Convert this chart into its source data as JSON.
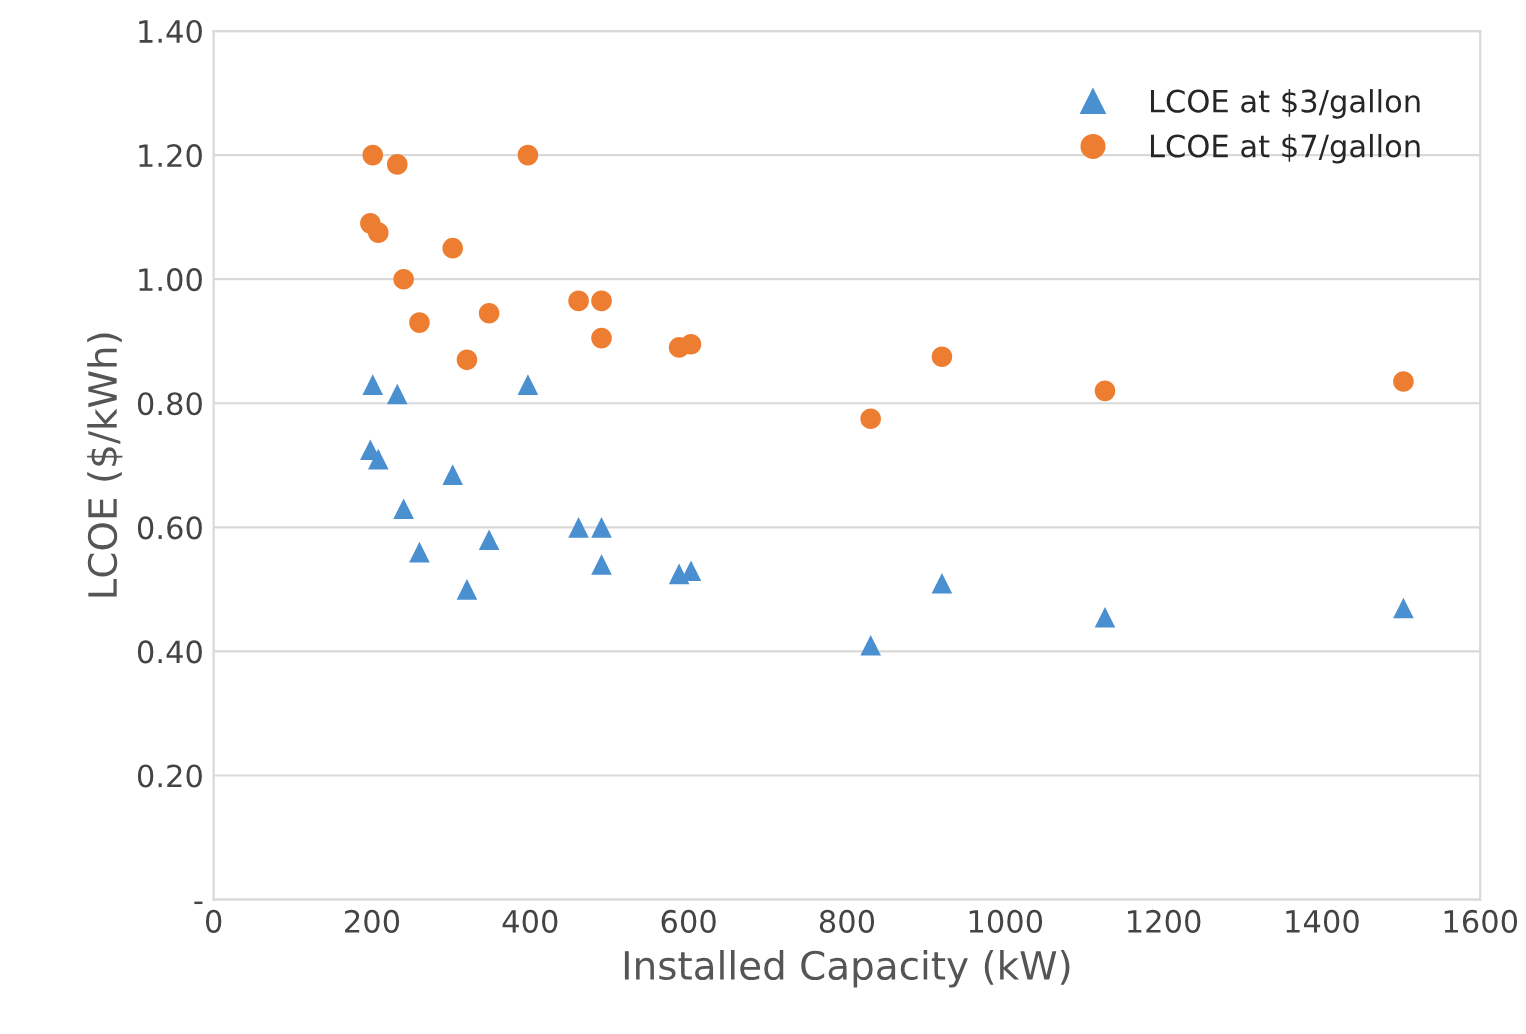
{
  "chart_data": {
    "type": "scatter",
    "xlabel": "Installed Capacity (kW)",
    "ylabel": "LCOE ($/kWh)",
    "xlim": [
      0,
      1600
    ],
    "xticks": [
      0,
      200,
      400,
      600,
      800,
      1000,
      1200,
      1400,
      1600
    ],
    "ylim": [
      0,
      1.4
    ],
    "yticks": [
      {
        "value": 0,
        "label": "-"
      },
      {
        "value": 0.2,
        "label": "0.20"
      },
      {
        "value": 0.4,
        "label": "0.40"
      },
      {
        "value": 0.6,
        "label": "0.60"
      },
      {
        "value": 0.8,
        "label": "0.80"
      },
      {
        "value": 1.0,
        "label": "1.00"
      },
      {
        "value": 1.2,
        "label": "1.20"
      },
      {
        "value": 1.4,
        "label": "1.40"
      }
    ],
    "grid": "y",
    "legend": "top right",
    "series": [
      {
        "name": "LCOE at $3/gallon",
        "color": "#4a90d0",
        "marker": "triangle",
        "x": [
          201,
          198,
          208,
          232,
          240,
          260,
          302,
          320,
          348,
          397,
          461,
          490,
          490,
          588,
          603,
          830,
          920,
          1126,
          1503
        ],
        "values": [
          0.83,
          0.725,
          0.71,
          0.815,
          0.63,
          0.56,
          0.685,
          0.5,
          0.58,
          0.83,
          0.6,
          0.6,
          0.54,
          0.525,
          0.53,
          0.41,
          0.51,
          0.455,
          0.47
        ]
      },
      {
        "name": "LCOE at $7/gallon",
        "color": "#ed7d31",
        "marker": "circle",
        "x": [
          201,
          198,
          208,
          232,
          240,
          260,
          302,
          320,
          348,
          397,
          461,
          490,
          490,
          588,
          603,
          830,
          920,
          1126,
          1503
        ],
        "values": [
          1.2,
          1.09,
          1.075,
          1.185,
          1.0,
          0.93,
          1.05,
          0.87,
          0.945,
          1.2,
          0.965,
          0.965,
          0.905,
          0.89,
          0.895,
          0.775,
          0.875,
          0.82,
          0.835
        ]
      }
    ]
  }
}
